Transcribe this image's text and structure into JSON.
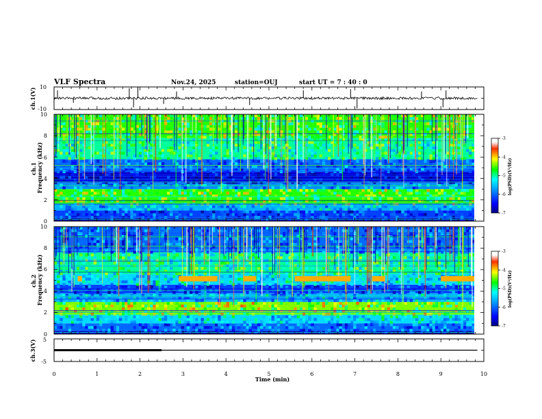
{
  "header": {
    "title": "VLF Spectra",
    "date": "Nov.24, 2025",
    "station": "station=OUJ",
    "start": "start  UT  =   7 : 40 : 0"
  },
  "chart_data": [
    {
      "type": "line",
      "id": "ch1-waveform",
      "ylabel": "ch.1(V)",
      "ylim": [
        -10,
        10
      ],
      "yticks": [
        "10",
        "-10"
      ],
      "xlim": [
        0,
        10
      ],
      "baseline": 0,
      "spikes": [
        {
          "t": 0.08,
          "v": 7
        },
        {
          "t": 0.45,
          "v": -4
        },
        {
          "t": 1.75,
          "v": 9
        },
        {
          "t": 1.85,
          "v": -8
        },
        {
          "t": 1.95,
          "v": 10
        },
        {
          "t": 2.55,
          "v": -5
        },
        {
          "t": 2.85,
          "v": 6
        },
        {
          "t": 4.55,
          "v": -6
        },
        {
          "t": 5.8,
          "v": 7
        },
        {
          "t": 6.9,
          "v": 8
        },
        {
          "t": 7.05,
          "v": -9
        },
        {
          "t": 8.55,
          "v": 6
        },
        {
          "t": 9.05,
          "v": -8
        },
        {
          "t": 9.12,
          "v": 7
        }
      ]
    },
    {
      "type": "heatmap",
      "id": "ch1-spectrogram",
      "ylabel": "ch.1\nFrequency  (kHz)",
      "ylim": [
        0,
        10
      ],
      "yticks": [
        "0",
        "2",
        "4",
        "6",
        "8",
        "10"
      ],
      "xlim": [
        0,
        9.85
      ],
      "colorbar": {
        "label": "log(PSD)(V²/Hz)",
        "range": [
          -7,
          -3
        ],
        "ticks": [
          "-3",
          "-4",
          "-5",
          "-6",
          "-7"
        ]
      },
      "bands": [
        {
          "f0": 0,
          "f1": 0.3,
          "level": -6.8
        },
        {
          "f0": 0.3,
          "f1": 1.0,
          "level": -6.2
        },
        {
          "f0": 1.0,
          "f1": 1.6,
          "level": -5.6
        },
        {
          "f0": 1.6,
          "f1": 3.0,
          "level": -4.6
        },
        {
          "f0": 3.0,
          "f1": 3.6,
          "level": -5.8
        },
        {
          "f0": 3.6,
          "f1": 4.6,
          "level": -6.7
        },
        {
          "f0": 4.6,
          "f1": 5.8,
          "level": -6.0
        },
        {
          "f0": 5.8,
          "f1": 7.8,
          "level": -5.0
        },
        {
          "f0": 7.8,
          "f1": 10,
          "level": -4.6
        }
      ]
    },
    {
      "type": "heatmap",
      "id": "ch2-spectrogram",
      "ylabel": "ch.2\nFrequency  (kHz)",
      "ylim": [
        0,
        10
      ],
      "yticks": [
        "0",
        "2",
        "4",
        "6",
        "8",
        "10"
      ],
      "xlim": [
        0,
        9.85
      ],
      "colorbar": {
        "label": "log(PSD)(V²/Hz)",
        "range": [
          -7,
          -3
        ],
        "ticks": [
          "-3",
          "-4",
          "-5",
          "-6",
          "-7"
        ]
      },
      "bands": [
        {
          "f0": 0,
          "f1": 0.3,
          "level": -6.8
        },
        {
          "f0": 0.3,
          "f1": 1.0,
          "level": -6.0
        },
        {
          "f0": 1.0,
          "f1": 1.8,
          "level": -5.4
        },
        {
          "f0": 1.8,
          "f1": 3.0,
          "level": -4.4
        },
        {
          "f0": 3.0,
          "f1": 3.8,
          "level": -5.6
        },
        {
          "f0": 3.8,
          "f1": 4.6,
          "level": -6.2
        },
        {
          "f0": 4.6,
          "f1": 5.6,
          "level": -5.4
        },
        {
          "f0": 5.6,
          "f1": 7.6,
          "level": -5.0
        },
        {
          "f0": 7.6,
          "f1": 10,
          "level": -6.0
        }
      ],
      "band_5khz_segments": [
        [
          0.55,
          0.65
        ],
        [
          2.9,
          3.8
        ],
        [
          4.4,
          4.7
        ],
        [
          5.6,
          6.9
        ],
        [
          7.4,
          7.7
        ],
        [
          9.0,
          9.85
        ]
      ]
    },
    {
      "type": "line",
      "id": "ch3-trace",
      "ylabel": "ch.3(V)",
      "ylim": [
        -5,
        5
      ],
      "yticks": [
        "5",
        "-5"
      ],
      "xlim": [
        0,
        10
      ],
      "xlabel": "Time  (min)",
      "xticks": [
        "0",
        "1",
        "2",
        "3",
        "4",
        "5",
        "6",
        "7",
        "8",
        "9",
        "10"
      ],
      "trace": {
        "level": 0,
        "end": 9.85
      },
      "thick_segment": [
        0,
        2.5
      ]
    }
  ]
}
